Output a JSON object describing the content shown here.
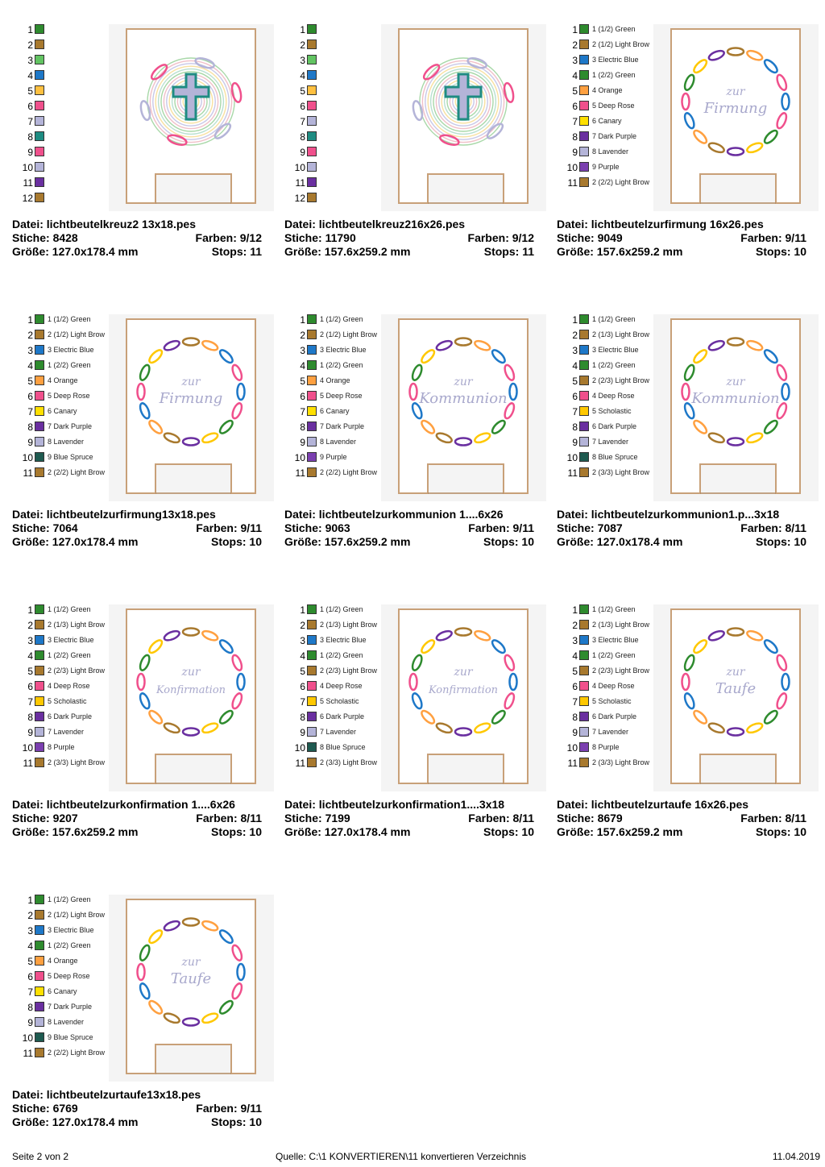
{
  "items": [
    {
      "palette": [
        {
          "n": "1",
          "label": "",
          "color": "#2e8b2e"
        },
        {
          "n": "2",
          "label": "",
          "color": "#a8792e"
        },
        {
          "n": "3",
          "label": "",
          "color": "#62c462"
        },
        {
          "n": "4",
          "label": "",
          "color": "#1e78c8"
        },
        {
          "n": "5",
          "label": "",
          "color": "#ffc040"
        },
        {
          "n": "6",
          "label": "",
          "color": "#f0508c"
        },
        {
          "n": "7",
          "label": "",
          "color": "#b4b4d8"
        },
        {
          "n": "8",
          "label": "",
          "color": "#1e8c82"
        },
        {
          "n": "9",
          "label": "",
          "color": "#f0508c"
        },
        {
          "n": "10",
          "label": "",
          "color": "#b4b4d8"
        },
        {
          "n": "11",
          "label": "",
          "color": "#6a2fa0"
        },
        {
          "n": "12",
          "label": "",
          "color": "#a8792e"
        }
      ],
      "design": "cross",
      "text1": "",
      "text2": "",
      "file": "Datei: lichtbeutelkreuz2 13x18.pes",
      "stiche": "Stiche: 8428",
      "farben": "Farben: 9/12",
      "groesse": "Größe: 127.0x178.4 mm",
      "stops": "Stops: 11"
    },
    {
      "palette": [
        {
          "n": "1",
          "label": "",
          "color": "#2e8b2e"
        },
        {
          "n": "2",
          "label": "",
          "color": "#a8792e"
        },
        {
          "n": "3",
          "label": "",
          "color": "#62c462"
        },
        {
          "n": "4",
          "label": "",
          "color": "#1e78c8"
        },
        {
          "n": "5",
          "label": "",
          "color": "#ffc040"
        },
        {
          "n": "6",
          "label": "",
          "color": "#f0508c"
        },
        {
          "n": "7",
          "label": "",
          "color": "#b4b4d8"
        },
        {
          "n": "8",
          "label": "",
          "color": "#1e8c82"
        },
        {
          "n": "9",
          "label": "",
          "color": "#f0508c"
        },
        {
          "n": "10",
          "label": "",
          "color": "#b4b4d8"
        },
        {
          "n": "11",
          "label": "",
          "color": "#6a2fa0"
        },
        {
          "n": "12",
          "label": "",
          "color": "#a8792e"
        }
      ],
      "design": "cross",
      "text1": "",
      "text2": "",
      "file": "Datei: lichtbeutelkreuz216x26.pes",
      "stiche": "Stiche: 11790",
      "farben": "Farben: 9/12",
      "groesse": "Größe: 157.6x259.2 mm",
      "stops": "Stops: 11"
    },
    {
      "palette": [
        {
          "n": "1",
          "label": "1 (1/2) Green",
          "color": "#2e8b2e"
        },
        {
          "n": "2",
          "label": "2 (1/2) Light Brow",
          "color": "#a8792e"
        },
        {
          "n": "3",
          "label": "3 Electric Blue",
          "color": "#1e78c8"
        },
        {
          "n": "4",
          "label": "1 (2/2) Green",
          "color": "#2e8b2e"
        },
        {
          "n": "5",
          "label": "4 Orange",
          "color": "#ffa040"
        },
        {
          "n": "6",
          "label": "5 Deep Rose",
          "color": "#f0508c"
        },
        {
          "n": "7",
          "label": "6 Canary",
          "color": "#ffe000"
        },
        {
          "n": "8",
          "label": "7 Dark Purple",
          "color": "#6a2fa0"
        },
        {
          "n": "9",
          "label": "8 Lavender",
          "color": "#b4b4d8"
        },
        {
          "n": "10",
          "label": "9 Purple",
          "color": "#7b3fb0"
        },
        {
          "n": "11",
          "label": "2 (2/2) Light Brow",
          "color": "#a8792e"
        }
      ],
      "design": "ring",
      "text1": "zur",
      "text2": "Firmung",
      "file": "Datei: lichtbeutelzurfirmung 16x26.pes",
      "stiche": "Stiche: 9049",
      "farben": "Farben: 9/11",
      "groesse": "Größe: 157.6x259.2 mm",
      "stops": "Stops: 10"
    },
    {
      "palette": [
        {
          "n": "1",
          "label": "1 (1/2) Green",
          "color": "#2e8b2e"
        },
        {
          "n": "2",
          "label": "2 (1/2) Light Brow",
          "color": "#a8792e"
        },
        {
          "n": "3",
          "label": "3 Electric Blue",
          "color": "#1e78c8"
        },
        {
          "n": "4",
          "label": "1 (2/2) Green",
          "color": "#2e8b2e"
        },
        {
          "n": "5",
          "label": "4 Orange",
          "color": "#ffa040"
        },
        {
          "n": "6",
          "label": "5 Deep Rose",
          "color": "#f0508c"
        },
        {
          "n": "7",
          "label": "6 Canary",
          "color": "#ffe000"
        },
        {
          "n": "8",
          "label": "7 Dark Purple",
          "color": "#6a2fa0"
        },
        {
          "n": "9",
          "label": "8 Lavender",
          "color": "#b4b4d8"
        },
        {
          "n": "10",
          "label": "9 Blue Spruce",
          "color": "#1e5a50"
        },
        {
          "n": "11",
          "label": "2 (2/2) Light Brow",
          "color": "#a8792e"
        }
      ],
      "design": "ring",
      "text1": "zur",
      "text2": "Firmung",
      "file": "Datei: lichtbeutelzurfirmung13x18.pes",
      "stiche": "Stiche: 7064",
      "farben": "Farben: 9/11",
      "groesse": "Größe: 127.0x178.4 mm",
      "stops": "Stops: 10"
    },
    {
      "palette": [
        {
          "n": "1",
          "label": "1 (1/2) Green",
          "color": "#2e8b2e"
        },
        {
          "n": "2",
          "label": "2 (1/2) Light Brow",
          "color": "#a8792e"
        },
        {
          "n": "3",
          "label": "3 Electric Blue",
          "color": "#1e78c8"
        },
        {
          "n": "4",
          "label": "1 (2/2) Green",
          "color": "#2e8b2e"
        },
        {
          "n": "5",
          "label": "4 Orange",
          "color": "#ffa040"
        },
        {
          "n": "6",
          "label": "5 Deep Rose",
          "color": "#f0508c"
        },
        {
          "n": "7",
          "label": "6 Canary",
          "color": "#ffe000"
        },
        {
          "n": "8",
          "label": "7 Dark Purple",
          "color": "#6a2fa0"
        },
        {
          "n": "9",
          "label": "8 Lavender",
          "color": "#b4b4d8"
        },
        {
          "n": "10",
          "label": "9 Purple",
          "color": "#7b3fb0"
        },
        {
          "n": "11",
          "label": "2 (2/2) Light Brow",
          "color": "#a8792e"
        }
      ],
      "design": "ring",
      "text1": "zur",
      "text2": "Kommunion",
      "file": "Datei: lichtbeutelzurkommunion 1....6x26",
      "stiche": "Stiche: 9063",
      "farben": "Farben: 9/11",
      "groesse": "Größe: 157.6x259.2 mm",
      "stops": "Stops: 10"
    },
    {
      "palette": [
        {
          "n": "1",
          "label": "1 (1/2) Green",
          "color": "#2e8b2e"
        },
        {
          "n": "2",
          "label": "2 (1/3) Light Brow",
          "color": "#a8792e"
        },
        {
          "n": "3",
          "label": "3 Electric Blue",
          "color": "#1e78c8"
        },
        {
          "n": "4",
          "label": "1 (2/2) Green",
          "color": "#2e8b2e"
        },
        {
          "n": "5",
          "label": "2 (2/3) Light Brow",
          "color": "#a8792e"
        },
        {
          "n": "6",
          "label": "4 Deep Rose",
          "color": "#f0508c"
        },
        {
          "n": "7",
          "label": "5 Scholastic",
          "color": "#ffc800"
        },
        {
          "n": "8",
          "label": "6 Dark Purple",
          "color": "#6a2fa0"
        },
        {
          "n": "9",
          "label": "7 Lavender",
          "color": "#b4b4d8"
        },
        {
          "n": "10",
          "label": "8 Blue Spruce",
          "color": "#1e5a50"
        },
        {
          "n": "11",
          "label": "2 (3/3) Light Brow",
          "color": "#a8792e"
        }
      ],
      "design": "ring",
      "text1": "zur",
      "text2": "Kommunion",
      "file": "Datei: lichtbeutelzurkommunion1.p...3x18",
      "stiche": "Stiche: 7087",
      "farben": "Farben: 8/11",
      "groesse": "Größe: 127.0x178.4 mm",
      "stops": "Stops: 10"
    },
    {
      "palette": [
        {
          "n": "1",
          "label": "1 (1/2) Green",
          "color": "#2e8b2e"
        },
        {
          "n": "2",
          "label": "2 (1/3) Light Brow",
          "color": "#a8792e"
        },
        {
          "n": "3",
          "label": "3 Electric Blue",
          "color": "#1e78c8"
        },
        {
          "n": "4",
          "label": "1 (2/2) Green",
          "color": "#2e8b2e"
        },
        {
          "n": "5",
          "label": "2 (2/3) Light Brow",
          "color": "#a8792e"
        },
        {
          "n": "6",
          "label": "4 Deep Rose",
          "color": "#f0508c"
        },
        {
          "n": "7",
          "label": "5 Scholastic",
          "color": "#ffc800"
        },
        {
          "n": "8",
          "label": "6 Dark Purple",
          "color": "#6a2fa0"
        },
        {
          "n": "9",
          "label": "7 Lavender",
          "color": "#b4b4d8"
        },
        {
          "n": "10",
          "label": "8 Purple",
          "color": "#7b3fb0"
        },
        {
          "n": "11",
          "label": "2 (3/3) Light Brow",
          "color": "#a8792e"
        }
      ],
      "design": "ring",
      "text1": "zur",
      "text2": "Konfirmation",
      "file": "Datei: lichtbeutelzurkonfirmation 1....6x26",
      "stiche": "Stiche: 9207",
      "farben": "Farben: 8/11",
      "groesse": "Größe: 157.6x259.2 mm",
      "stops": "Stops: 10"
    },
    {
      "palette": [
        {
          "n": "1",
          "label": "1 (1/2) Green",
          "color": "#2e8b2e"
        },
        {
          "n": "2",
          "label": "2 (1/3) Light Brow",
          "color": "#a8792e"
        },
        {
          "n": "3",
          "label": "3 Electric Blue",
          "color": "#1e78c8"
        },
        {
          "n": "4",
          "label": "1 (2/2) Green",
          "color": "#2e8b2e"
        },
        {
          "n": "5",
          "label": "2 (2/3) Light Brow",
          "color": "#a8792e"
        },
        {
          "n": "6",
          "label": "4 Deep Rose",
          "color": "#f0508c"
        },
        {
          "n": "7",
          "label": "5 Scholastic",
          "color": "#ffc800"
        },
        {
          "n": "8",
          "label": "6 Dark Purple",
          "color": "#6a2fa0"
        },
        {
          "n": "9",
          "label": "7 Lavender",
          "color": "#b4b4d8"
        },
        {
          "n": "10",
          "label": "8 Blue Spruce",
          "color": "#1e5a50"
        },
        {
          "n": "11",
          "label": "2 (3/3) Light Brow",
          "color": "#a8792e"
        }
      ],
      "design": "ring",
      "text1": "zur",
      "text2": "Konfirmation",
      "file": "Datei: lichtbeutelzurkonfirmation1....3x18",
      "stiche": "Stiche: 7199",
      "farben": "Farben: 8/11",
      "groesse": "Größe: 127.0x178.4 mm",
      "stops": "Stops: 10"
    },
    {
      "palette": [
        {
          "n": "1",
          "label": "1 (1/2) Green",
          "color": "#2e8b2e"
        },
        {
          "n": "2",
          "label": "2 (1/3) Light Brow",
          "color": "#a8792e"
        },
        {
          "n": "3",
          "label": "3 Electric Blue",
          "color": "#1e78c8"
        },
        {
          "n": "4",
          "label": "1 (2/2) Green",
          "color": "#2e8b2e"
        },
        {
          "n": "5",
          "label": "2 (2/3) Light Brow",
          "color": "#a8792e"
        },
        {
          "n": "6",
          "label": "4 Deep Rose",
          "color": "#f0508c"
        },
        {
          "n": "7",
          "label": "5 Scholastic",
          "color": "#ffc800"
        },
        {
          "n": "8",
          "label": "6 Dark Purple",
          "color": "#6a2fa0"
        },
        {
          "n": "9",
          "label": "7 Lavender",
          "color": "#b4b4d8"
        },
        {
          "n": "10",
          "label": "8 Purple",
          "color": "#7b3fb0"
        },
        {
          "n": "11",
          "label": "2 (3/3) Light Brow",
          "color": "#a8792e"
        }
      ],
      "design": "ring",
      "text1": "zur",
      "text2": "Taufe",
      "file": "Datei: lichtbeutelzurtaufe 16x26.pes",
      "stiche": "Stiche: 8679",
      "farben": "Farben: 8/11",
      "groesse": "Größe: 157.6x259.2 mm",
      "stops": "Stops: 10"
    },
    {
      "palette": [
        {
          "n": "1",
          "label": "1 (1/2) Green",
          "color": "#2e8b2e"
        },
        {
          "n": "2",
          "label": "2 (1/2) Light Brow",
          "color": "#a8792e"
        },
        {
          "n": "3",
          "label": "3 Electric Blue",
          "color": "#1e78c8"
        },
        {
          "n": "4",
          "label": "1 (2/2) Green",
          "color": "#2e8b2e"
        },
        {
          "n": "5",
          "label": "4 Orange",
          "color": "#ffa040"
        },
        {
          "n": "6",
          "label": "5 Deep Rose",
          "color": "#f0508c"
        },
        {
          "n": "7",
          "label": "6 Canary",
          "color": "#ffe000"
        },
        {
          "n": "8",
          "label": "7 Dark Purple",
          "color": "#6a2fa0"
        },
        {
          "n": "9",
          "label": "8 Lavender",
          "color": "#b4b4d8"
        },
        {
          "n": "10",
          "label": "9 Blue Spruce",
          "color": "#1e5a50"
        },
        {
          "n": "11",
          "label": "2 (2/2) Light Brow",
          "color": "#a8792e"
        }
      ],
      "design": "ring",
      "text1": "zur",
      "text2": "Taufe",
      "file": "Datei: lichtbeutelzurtaufe13x18.pes",
      "stiche": "Stiche: 6769",
      "farben": "Farben: 9/11",
      "groesse": "Größe: 127.0x178.4 mm",
      "stops": "Stops: 10"
    }
  ],
  "footer": {
    "page": "Seite 2 von 2",
    "source": "Quelle: C:\\1 KONVERTIEREN\\11 konvertieren Verzeichnis",
    "date": "11.04.2019"
  },
  "colors": {
    "outline": "#c8a078",
    "fish": [
      "#1e78c8",
      "#f0508c",
      "#2e8b2e",
      "#ffc800",
      "#6a2fa0",
      "#a8792e",
      "#ffa040"
    ],
    "lettering": "#a8a8cc"
  }
}
